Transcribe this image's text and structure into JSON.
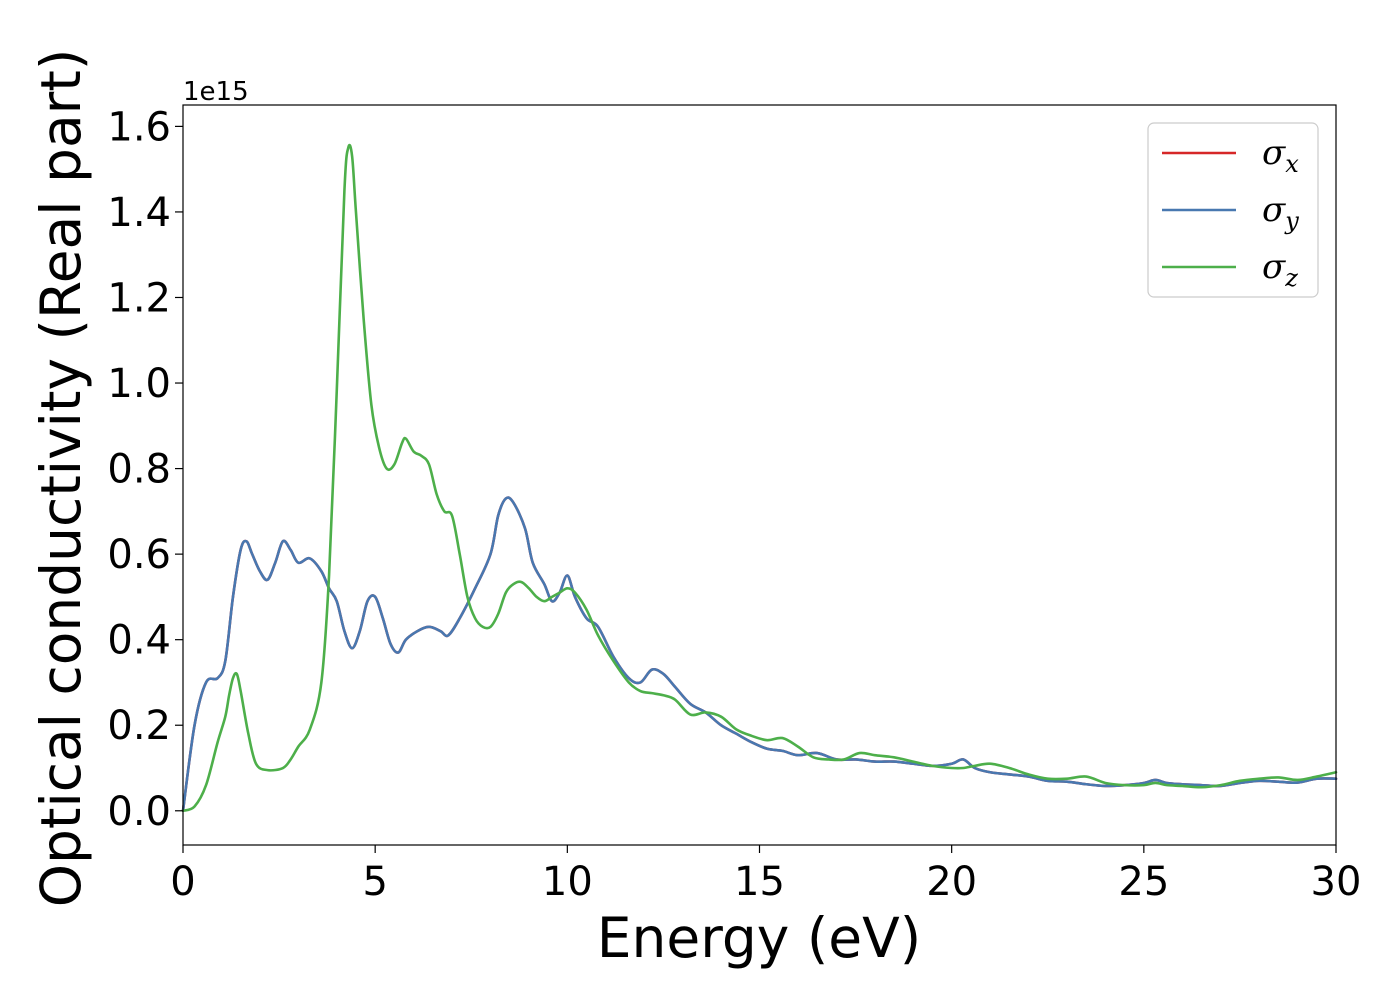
{
  "chart_data": {
    "type": "line",
    "title": "",
    "xlabel": "Energy (eV)",
    "ylabel": "Optical conductivity (Real part)",
    "y_offset_label": "1e15",
    "xlim": [
      0,
      30
    ],
    "ylim": [
      -0.08,
      1.65
    ],
    "x_ticks": [
      0,
      5,
      10,
      15,
      20,
      25,
      30
    ],
    "x_tick_labels": [
      "0",
      "5",
      "10",
      "15",
      "20",
      "25",
      "30"
    ],
    "y_ticks": [
      0.0,
      0.2,
      0.4,
      0.6,
      0.8,
      1.0,
      1.2,
      1.4,
      1.6
    ],
    "y_tick_labels": [
      "0.0",
      "0.2",
      "0.4",
      "0.6",
      "0.8",
      "1.0",
      "1.2",
      "1.4",
      "1.6"
    ],
    "grid": false,
    "legend_position": "top-right",
    "series": [
      {
        "name": "σx",
        "symbol": "σ",
        "subscript": "x",
        "color": "#d62728",
        "points": [
          [
            0,
            0
          ],
          [
            0.3,
            0.2
          ],
          [
            0.6,
            0.3
          ],
          [
            0.9,
            0.31
          ],
          [
            1.1,
            0.35
          ],
          [
            1.3,
            0.5
          ],
          [
            1.5,
            0.61
          ],
          [
            1.65,
            0.63
          ],
          [
            1.8,
            0.6
          ],
          [
            2.0,
            0.56
          ],
          [
            2.2,
            0.54
          ],
          [
            2.4,
            0.58
          ],
          [
            2.6,
            0.63
          ],
          [
            2.8,
            0.61
          ],
          [
            3.0,
            0.58
          ],
          [
            3.3,
            0.59
          ],
          [
            3.6,
            0.56
          ],
          [
            3.8,
            0.52
          ],
          [
            4.0,
            0.49
          ],
          [
            4.2,
            0.42
          ],
          [
            4.4,
            0.38
          ],
          [
            4.6,
            0.42
          ],
          [
            4.8,
            0.49
          ],
          [
            5.0,
            0.5
          ],
          [
            5.2,
            0.45
          ],
          [
            5.4,
            0.39
          ],
          [
            5.6,
            0.37
          ],
          [
            5.8,
            0.4
          ],
          [
            6.1,
            0.42
          ],
          [
            6.4,
            0.43
          ],
          [
            6.7,
            0.42
          ],
          [
            6.9,
            0.41
          ],
          [
            7.2,
            0.45
          ],
          [
            7.6,
            0.52
          ],
          [
            8.0,
            0.6
          ],
          [
            8.2,
            0.69
          ],
          [
            8.4,
            0.73
          ],
          [
            8.6,
            0.72
          ],
          [
            8.9,
            0.66
          ],
          [
            9.1,
            0.58
          ],
          [
            9.4,
            0.53
          ],
          [
            9.6,
            0.49
          ],
          [
            9.8,
            0.51
          ],
          [
            10.0,
            0.55
          ],
          [
            10.2,
            0.5
          ],
          [
            10.5,
            0.45
          ],
          [
            10.8,
            0.43
          ],
          [
            11.2,
            0.36
          ],
          [
            11.6,
            0.31
          ],
          [
            11.9,
            0.3
          ],
          [
            12.2,
            0.33
          ],
          [
            12.5,
            0.32
          ],
          [
            12.8,
            0.29
          ],
          [
            13.2,
            0.25
          ],
          [
            13.6,
            0.23
          ],
          [
            14.0,
            0.2
          ],
          [
            14.4,
            0.18
          ],
          [
            14.8,
            0.16
          ],
          [
            15.2,
            0.145
          ],
          [
            15.6,
            0.14
          ],
          [
            16.0,
            0.13
          ],
          [
            16.5,
            0.135
          ],
          [
            17.0,
            0.12
          ],
          [
            17.5,
            0.12
          ],
          [
            18.0,
            0.115
          ],
          [
            18.5,
            0.115
          ],
          [
            19.0,
            0.11
          ],
          [
            19.5,
            0.105
          ],
          [
            20.0,
            0.11
          ],
          [
            20.3,
            0.12
          ],
          [
            20.6,
            0.1
          ],
          [
            21.0,
            0.09
          ],
          [
            21.5,
            0.085
          ],
          [
            22.0,
            0.08
          ],
          [
            22.5,
            0.07
          ],
          [
            23.0,
            0.068
          ],
          [
            23.5,
            0.062
          ],
          [
            24.0,
            0.058
          ],
          [
            24.5,
            0.06
          ],
          [
            25.0,
            0.065
          ],
          [
            25.3,
            0.072
          ],
          [
            25.6,
            0.065
          ],
          [
            26.0,
            0.062
          ],
          [
            26.5,
            0.06
          ],
          [
            27.0,
            0.058
          ],
          [
            27.5,
            0.065
          ],
          [
            28.0,
            0.07
          ],
          [
            28.5,
            0.068
          ],
          [
            29.0,
            0.066
          ],
          [
            29.5,
            0.075
          ],
          [
            30.0,
            0.075
          ]
        ]
      },
      {
        "name": "σy",
        "symbol": "σ",
        "subscript": "y",
        "color": "#4878b0",
        "points": [
          [
            0,
            0
          ],
          [
            0.3,
            0.2
          ],
          [
            0.6,
            0.3
          ],
          [
            0.9,
            0.31
          ],
          [
            1.1,
            0.35
          ],
          [
            1.3,
            0.5
          ],
          [
            1.5,
            0.61
          ],
          [
            1.65,
            0.63
          ],
          [
            1.8,
            0.6
          ],
          [
            2.0,
            0.56
          ],
          [
            2.2,
            0.54
          ],
          [
            2.4,
            0.58
          ],
          [
            2.6,
            0.63
          ],
          [
            2.8,
            0.61
          ],
          [
            3.0,
            0.58
          ],
          [
            3.3,
            0.59
          ],
          [
            3.6,
            0.56
          ],
          [
            3.8,
            0.52
          ],
          [
            4.0,
            0.49
          ],
          [
            4.2,
            0.42
          ],
          [
            4.4,
            0.38
          ],
          [
            4.6,
            0.42
          ],
          [
            4.8,
            0.49
          ],
          [
            5.0,
            0.5
          ],
          [
            5.2,
            0.45
          ],
          [
            5.4,
            0.39
          ],
          [
            5.6,
            0.37
          ],
          [
            5.8,
            0.4
          ],
          [
            6.1,
            0.42
          ],
          [
            6.4,
            0.43
          ],
          [
            6.7,
            0.42
          ],
          [
            6.9,
            0.41
          ],
          [
            7.2,
            0.45
          ],
          [
            7.6,
            0.52
          ],
          [
            8.0,
            0.6
          ],
          [
            8.2,
            0.69
          ],
          [
            8.4,
            0.73
          ],
          [
            8.6,
            0.72
          ],
          [
            8.9,
            0.66
          ],
          [
            9.1,
            0.58
          ],
          [
            9.4,
            0.53
          ],
          [
            9.6,
            0.49
          ],
          [
            9.8,
            0.51
          ],
          [
            10.0,
            0.55
          ],
          [
            10.2,
            0.5
          ],
          [
            10.5,
            0.45
          ],
          [
            10.8,
            0.43
          ],
          [
            11.2,
            0.36
          ],
          [
            11.6,
            0.31
          ],
          [
            11.9,
            0.3
          ],
          [
            12.2,
            0.33
          ],
          [
            12.5,
            0.32
          ],
          [
            12.8,
            0.29
          ],
          [
            13.2,
            0.25
          ],
          [
            13.6,
            0.23
          ],
          [
            14.0,
            0.2
          ],
          [
            14.4,
            0.18
          ],
          [
            14.8,
            0.16
          ],
          [
            15.2,
            0.145
          ],
          [
            15.6,
            0.14
          ],
          [
            16.0,
            0.13
          ],
          [
            16.5,
            0.135
          ],
          [
            17.0,
            0.12
          ],
          [
            17.5,
            0.12
          ],
          [
            18.0,
            0.115
          ],
          [
            18.5,
            0.115
          ],
          [
            19.0,
            0.11
          ],
          [
            19.5,
            0.105
          ],
          [
            20.0,
            0.11
          ],
          [
            20.3,
            0.12
          ],
          [
            20.6,
            0.1
          ],
          [
            21.0,
            0.09
          ],
          [
            21.5,
            0.085
          ],
          [
            22.0,
            0.08
          ],
          [
            22.5,
            0.07
          ],
          [
            23.0,
            0.068
          ],
          [
            23.5,
            0.062
          ],
          [
            24.0,
            0.058
          ],
          [
            24.5,
            0.06
          ],
          [
            25.0,
            0.065
          ],
          [
            25.3,
            0.072
          ],
          [
            25.6,
            0.065
          ],
          [
            26.0,
            0.062
          ],
          [
            26.5,
            0.06
          ],
          [
            27.0,
            0.058
          ],
          [
            27.5,
            0.065
          ],
          [
            28.0,
            0.07
          ],
          [
            28.5,
            0.068
          ],
          [
            29.0,
            0.066
          ],
          [
            29.5,
            0.075
          ],
          [
            30.0,
            0.075
          ]
        ]
      },
      {
        "name": "σz",
        "symbol": "σ",
        "subscript": "z",
        "color": "#4daf4a",
        "points": [
          [
            0,
            0
          ],
          [
            0.3,
            0.01
          ],
          [
            0.6,
            0.06
          ],
          [
            0.9,
            0.16
          ],
          [
            1.1,
            0.22
          ],
          [
            1.2,
            0.27
          ],
          [
            1.3,
            0.31
          ],
          [
            1.4,
            0.32
          ],
          [
            1.5,
            0.28
          ],
          [
            1.7,
            0.18
          ],
          [
            1.9,
            0.11
          ],
          [
            2.2,
            0.095
          ],
          [
            2.6,
            0.1
          ],
          [
            2.8,
            0.12
          ],
          [
            3.0,
            0.15
          ],
          [
            3.3,
            0.19
          ],
          [
            3.6,
            0.3
          ],
          [
            3.8,
            0.55
          ],
          [
            4.0,
            0.98
          ],
          [
            4.2,
            1.45
          ],
          [
            4.3,
            1.55
          ],
          [
            4.4,
            1.53
          ],
          [
            4.5,
            1.4
          ],
          [
            4.7,
            1.15
          ],
          [
            4.9,
            0.95
          ],
          [
            5.1,
            0.85
          ],
          [
            5.3,
            0.8
          ],
          [
            5.5,
            0.81
          ],
          [
            5.7,
            0.86
          ],
          [
            5.8,
            0.87
          ],
          [
            6.0,
            0.84
          ],
          [
            6.2,
            0.83
          ],
          [
            6.4,
            0.81
          ],
          [
            6.6,
            0.74
          ],
          [
            6.8,
            0.7
          ],
          [
            7.0,
            0.69
          ],
          [
            7.2,
            0.6
          ],
          [
            7.4,
            0.5
          ],
          [
            7.6,
            0.45
          ],
          [
            7.8,
            0.43
          ],
          [
            8.0,
            0.43
          ],
          [
            8.2,
            0.46
          ],
          [
            8.4,
            0.51
          ],
          [
            8.6,
            0.53
          ],
          [
            8.8,
            0.535
          ],
          [
            9.0,
            0.52
          ],
          [
            9.2,
            0.5
          ],
          [
            9.4,
            0.49
          ],
          [
            9.6,
            0.5
          ],
          [
            9.8,
            0.51
          ],
          [
            10.0,
            0.52
          ],
          [
            10.2,
            0.51
          ],
          [
            10.5,
            0.47
          ],
          [
            10.8,
            0.41
          ],
          [
            11.2,
            0.35
          ],
          [
            11.6,
            0.3
          ],
          [
            11.9,
            0.28
          ],
          [
            12.2,
            0.275
          ],
          [
            12.5,
            0.27
          ],
          [
            12.8,
            0.26
          ],
          [
            13.2,
            0.225
          ],
          [
            13.6,
            0.23
          ],
          [
            14.0,
            0.22
          ],
          [
            14.4,
            0.19
          ],
          [
            14.8,
            0.175
          ],
          [
            15.2,
            0.165
          ],
          [
            15.6,
            0.17
          ],
          [
            16.0,
            0.15
          ],
          [
            16.4,
            0.125
          ],
          [
            16.8,
            0.12
          ],
          [
            17.2,
            0.12
          ],
          [
            17.6,
            0.135
          ],
          [
            18.0,
            0.13
          ],
          [
            18.5,
            0.125
          ],
          [
            19.0,
            0.115
          ],
          [
            19.5,
            0.105
          ],
          [
            20.0,
            0.1
          ],
          [
            20.3,
            0.1
          ],
          [
            20.6,
            0.105
          ],
          [
            21.0,
            0.11
          ],
          [
            21.5,
            0.1
          ],
          [
            22.0,
            0.085
          ],
          [
            22.5,
            0.075
          ],
          [
            23.0,
            0.075
          ],
          [
            23.5,
            0.08
          ],
          [
            24.0,
            0.065
          ],
          [
            24.5,
            0.06
          ],
          [
            25.0,
            0.06
          ],
          [
            25.3,
            0.065
          ],
          [
            25.6,
            0.06
          ],
          [
            26.0,
            0.058
          ],
          [
            26.5,
            0.055
          ],
          [
            27.0,
            0.06
          ],
          [
            27.5,
            0.07
          ],
          [
            28.0,
            0.075
          ],
          [
            28.5,
            0.078
          ],
          [
            29.0,
            0.072
          ],
          [
            29.5,
            0.08
          ],
          [
            30.0,
            0.09
          ]
        ]
      }
    ]
  }
}
